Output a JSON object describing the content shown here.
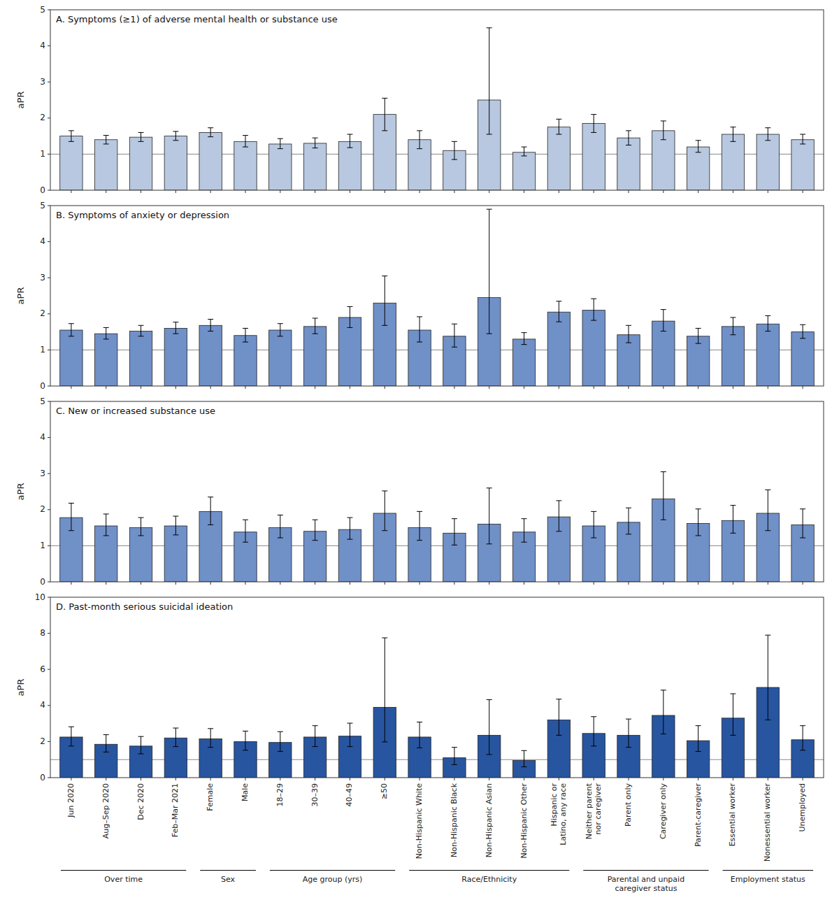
{
  "chart_data": [
    {
      "type": "bar",
      "title": "A. Symptoms (≥1) of adverse mental health or substance use",
      "y_label": "aPR",
      "categories": [
        "Jun 2020",
        "Aug–Sep 2020",
        "Dec 2020",
        "Feb–Mar 2021",
        "Female",
        "Male",
        "18–29",
        "30–39",
        "40–49",
        "≥50",
        "Non-Hispanic White",
        "Non-Hispanic Black",
        "Non-Hispanic Asian",
        "Non-Hispanic Other",
        "Hispanic or\nLatino, any race",
        "Neither parent\nnor caregiver",
        "Parent only",
        "Caregiver only",
        "Parent-caregiver",
        "Essential worker",
        "Nonessential worker",
        "Unemployed"
      ],
      "values": [
        1.5,
        1.4,
        1.47,
        1.5,
        1.6,
        1.35,
        1.28,
        1.3,
        1.35,
        2.1,
        1.4,
        1.1,
        2.5,
        1.05,
        1.75,
        1.85,
        1.45,
        1.65,
        1.2,
        1.55,
        1.55,
        1.4
      ],
      "ci_lo": [
        1.35,
        1.28,
        1.35,
        1.38,
        1.48,
        1.2,
        1.15,
        1.17,
        1.18,
        1.65,
        1.15,
        0.85,
        1.55,
        0.95,
        1.55,
        1.6,
        1.25,
        1.4,
        1.05,
        1.35,
        1.38,
        1.28
      ],
      "ci_hi": [
        1.65,
        1.52,
        1.6,
        1.63,
        1.73,
        1.52,
        1.43,
        1.45,
        1.55,
        2.55,
        1.65,
        1.35,
        4.5,
        1.2,
        1.97,
        2.1,
        1.65,
        1.92,
        1.38,
        1.75,
        1.73,
        1.55
      ],
      "ref_line": 1.0,
      "color": "#b8c8e0",
      "ylim": [
        0,
        5
      ],
      "yticks": [
        0,
        1,
        2,
        3,
        4,
        5
      ],
      "grid": false,
      "tick_labels": "y"
    },
    {
      "type": "bar",
      "title": "B. Symptoms of anxiety or depression",
      "y_label": "aPR",
      "categories": [
        "Jun 2020",
        "Aug–Sep 2020",
        "Dec 2020",
        "Feb–Mar 2021",
        "Female",
        "Male",
        "18–29",
        "30–39",
        "40–49",
        "≥50",
        "Non-Hispanic White",
        "Non-Hispanic Black",
        "Non-Hispanic Asian",
        "Non-Hispanic Other",
        "Hispanic or\nLatino, any race",
        "Neither parent\nnor caregiver",
        "Parent only",
        "Caregiver only",
        "Parent-caregiver",
        "Essential worker",
        "Nonessential worker",
        "Unemployed"
      ],
      "values": [
        1.55,
        1.45,
        1.52,
        1.6,
        1.68,
        1.4,
        1.55,
        1.65,
        1.9,
        2.3,
        1.55,
        1.38,
        2.45,
        1.3,
        2.05,
        2.1,
        1.42,
        1.8,
        1.38,
        1.65,
        1.72,
        1.5
      ],
      "ci_lo": [
        1.38,
        1.3,
        1.38,
        1.45,
        1.52,
        1.22,
        1.38,
        1.45,
        1.62,
        1.68,
        1.22,
        1.08,
        1.45,
        1.15,
        1.78,
        1.82,
        1.2,
        1.52,
        1.18,
        1.42,
        1.52,
        1.32
      ],
      "ci_hi": [
        1.73,
        1.62,
        1.68,
        1.77,
        1.85,
        1.6,
        1.73,
        1.88,
        2.2,
        3.05,
        1.92,
        1.72,
        4.9,
        1.48,
        2.35,
        2.42,
        1.68,
        2.12,
        1.6,
        1.9,
        1.95,
        1.7
      ],
      "ref_line": 1.0,
      "color": "#7090c8",
      "ylim": [
        0,
        5
      ],
      "yticks": [
        0,
        1,
        2,
        3,
        4,
        5
      ],
      "grid": false,
      "tick_labels": "y"
    },
    {
      "type": "bar",
      "title": "C. New or increased substance use",
      "y_label": "aPR",
      "categories": [
        "Jun 2020",
        "Aug–Sep 2020",
        "Dec 2020",
        "Feb–Mar 2021",
        "Female",
        "Male",
        "18–29",
        "30–39",
        "40–49",
        "≥50",
        "Non-Hispanic White",
        "Non-Hispanic Black",
        "Non-Hispanic Asian",
        "Non-Hispanic Other",
        "Hispanic or\nLatino, any race",
        "Neither parent\nnor caregiver",
        "Parent only",
        "Caregiver only",
        "Parent-caregiver",
        "Essential worker",
        "Nonessential worker",
        "Unemployed"
      ],
      "values": [
        1.78,
        1.55,
        1.5,
        1.55,
        1.95,
        1.38,
        1.5,
        1.4,
        1.45,
        1.9,
        1.5,
        1.35,
        1.6,
        1.38,
        1.8,
        1.55,
        1.65,
        2.3,
        1.62,
        1.7,
        1.9,
        1.58
      ],
      "ci_lo": [
        1.42,
        1.28,
        1.28,
        1.3,
        1.58,
        1.1,
        1.22,
        1.15,
        1.18,
        1.42,
        1.15,
        1.02,
        1.05,
        1.1,
        1.4,
        1.22,
        1.32,
        1.72,
        1.28,
        1.35,
        1.42,
        1.22
      ],
      "ci_hi": [
        2.18,
        1.88,
        1.78,
        1.82,
        2.35,
        1.72,
        1.85,
        1.72,
        1.78,
        2.52,
        1.95,
        1.75,
        2.6,
        1.75,
        2.25,
        1.95,
        2.05,
        3.05,
        2.02,
        2.12,
        2.55,
        2.02
      ],
      "ref_line": 1.0,
      "color": "#7090c8",
      "ylim": [
        0,
        5
      ],
      "yticks": [
        0,
        1,
        2,
        3,
        4,
        5
      ],
      "grid": false,
      "tick_labels": "y"
    },
    {
      "type": "bar",
      "title": "D. Past-month serious suicidal ideation",
      "y_label": "aPR",
      "categories": [
        "Jun 2020",
        "Aug–Sep 2020",
        "Dec 2020",
        "Feb–Mar 2021",
        "Female",
        "Male",
        "18–29",
        "30–39",
        "40–49",
        "≥50",
        "Non-Hispanic White",
        "Non-Hispanic Black",
        "Non-Hispanic Asian",
        "Non-Hispanic Other",
        "Hispanic or\nLatino, any race",
        "Neither parent\nnor caregiver",
        "Parent only",
        "Caregiver only",
        "Parent-caregiver",
        "Essential worker",
        "Nonessential worker",
        "Unemployed"
      ],
      "values": [
        2.25,
        1.85,
        1.75,
        2.2,
        2.15,
        2.0,
        1.95,
        2.25,
        2.3,
        3.9,
        2.25,
        1.1,
        2.35,
        0.95,
        3.2,
        2.45,
        2.35,
        3.45,
        2.05,
        3.3,
        5.0,
        2.1
      ],
      "ci_lo": [
        1.75,
        1.42,
        1.32,
        1.72,
        1.68,
        1.52,
        1.45,
        1.72,
        1.72,
        1.98,
        1.65,
        0.72,
        1.28,
        0.6,
        2.35,
        1.75,
        1.68,
        2.42,
        1.45,
        2.35,
        3.2,
        1.52
      ],
      "ci_hi": [
        2.82,
        2.38,
        2.28,
        2.75,
        2.72,
        2.58,
        2.55,
        2.88,
        3.02,
        7.75,
        3.08,
        1.68,
        4.32,
        1.5,
        4.35,
        3.38,
        3.25,
        4.85,
        2.88,
        4.65,
        7.9,
        2.88
      ],
      "ref_line": 1.0,
      "color": "#2855a0",
      "ylim": [
        0,
        10
      ],
      "yticks": [
        0,
        2,
        4,
        6,
        8,
        10
      ],
      "grid": false,
      "groups": [
        {
          "label": "Over time",
          "first": "Jun 2020",
          "last": "Feb–Mar 2021"
        },
        {
          "label": "Sex",
          "first": "Female",
          "last": "Male"
        },
        {
          "label": "Age group (yrs)",
          "first": "18–29",
          "last": "≥50"
        },
        {
          "label": "Race/Ethnicity",
          "first": "Non-Hispanic White",
          "last": "Hispanic or\nLatino, any race"
        },
        {
          "label": "Parental and unpaid\ncaregiver status",
          "first": "Neither parent\nnor caregiver",
          "last": "Parent-caregiver"
        },
        {
          "label": "Employment status",
          "first": "Essential worker",
          "last": "Unemployed"
        }
      ]
    }
  ]
}
